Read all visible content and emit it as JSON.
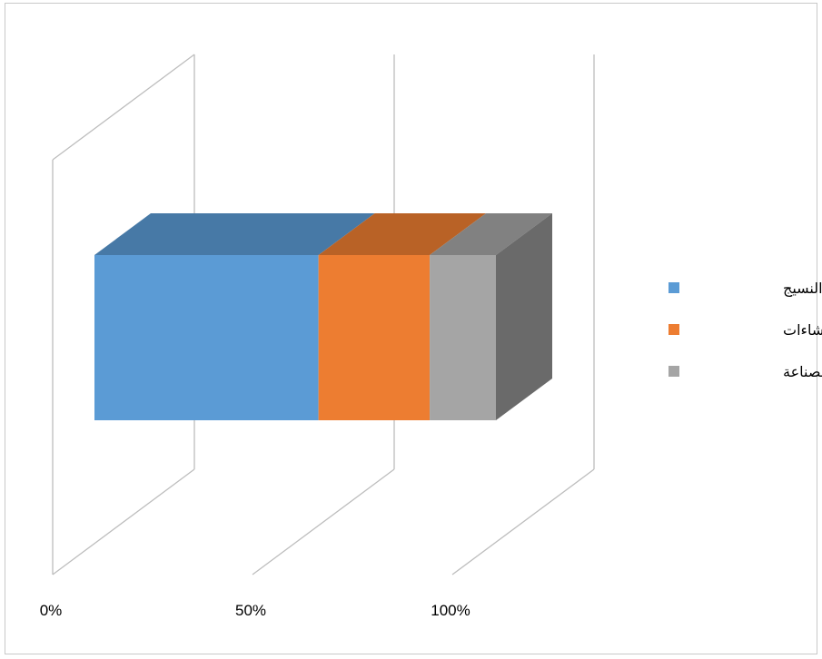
{
  "chart_data": {
    "type": "bar",
    "orientation": "horizontal",
    "stacked": "100%",
    "three_d": true,
    "title": "",
    "xlabel": "",
    "ylabel": "",
    "xlim": [
      0,
      100
    ],
    "x_ticks": [
      "0%",
      "50%",
      "100%"
    ],
    "grid": true,
    "legend_position": "right",
    "categories": [
      ""
    ],
    "series": [
      {
        "name": "قطاع النسيج",
        "values": [
          55.8
        ],
        "color": "#5b9bd5"
      },
      {
        "name": "قطاع الانشاءات",
        "values": [
          27.7
        ],
        "color": "#ed7d31"
      },
      {
        "name": "قطاع الصناعة",
        "values": [
          16.5
        ],
        "color": "#a5a5a5"
      }
    ]
  }
}
